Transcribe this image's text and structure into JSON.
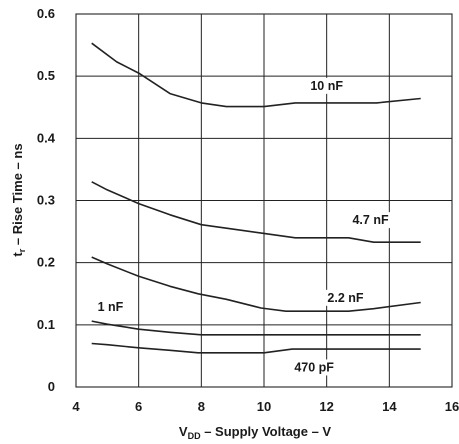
{
  "chart_data": {
    "type": "line",
    "xlabel": {
      "main": "V",
      "sub": "DD",
      "rest": " – Supply Voltage – V"
    },
    "ylabel": {
      "main": "t",
      "sub": "r",
      "rest": " – Rise Time – ns"
    },
    "xlim": [
      4,
      16
    ],
    "ylim": [
      0,
      0.6
    ],
    "xticks": [
      4,
      6,
      8,
      10,
      12,
      14,
      16
    ],
    "xtick_labels": [
      "4",
      "6",
      "8",
      "10",
      "12",
      "14",
      "16"
    ],
    "yticks": [
      0,
      0.1,
      0.2,
      0.3,
      0.4,
      0.5,
      0.6
    ],
    "ytick_labels": [
      "0",
      "0.1",
      "0.2",
      "0.3",
      "0.4",
      "0.5",
      "0.6"
    ],
    "grid": true,
    "colors": {
      "line": "#222222",
      "grid": "#222222",
      "background": "#ffffff"
    },
    "series": [
      {
        "name": "10 nF",
        "x": [
          4.5,
          5.3,
          6,
          7,
          8,
          8.8,
          9.5,
          10,
          11,
          12,
          13,
          13.6,
          15
        ],
        "y": [
          0.553,
          0.523,
          0.505,
          0.472,
          0.457,
          0.451,
          0.451,
          0.451,
          0.457,
          0.457,
          0.457,
          0.457,
          0.464
        ]
      },
      {
        "name": "4.7 nF",
        "x": [
          4.5,
          5,
          6,
          7,
          8,
          9,
          10,
          11,
          12,
          12.7,
          13.5,
          15
        ],
        "y": [
          0.33,
          0.317,
          0.295,
          0.277,
          0.261,
          0.254,
          0.247,
          0.24,
          0.24,
          0.24,
          0.233,
          0.233
        ]
      },
      {
        "name": "2.2 nF",
        "x": [
          4.5,
          5,
          6,
          7,
          7.9,
          8.8,
          9.9,
          10.7,
          12,
          12.7,
          13.5,
          15
        ],
        "y": [
          0.209,
          0.198,
          0.178,
          0.162,
          0.15,
          0.141,
          0.127,
          0.122,
          0.122,
          0.122,
          0.126,
          0.136
        ]
      },
      {
        "name": "1 nF",
        "x": [
          4.5,
          5,
          6,
          7,
          8,
          9,
          10,
          11,
          12,
          13,
          14,
          15
        ],
        "y": [
          0.106,
          0.101,
          0.093,
          0.088,
          0.084,
          0.084,
          0.084,
          0.084,
          0.084,
          0.084,
          0.084,
          0.084
        ]
      },
      {
        "name": "470 pF",
        "x": [
          4.5,
          5,
          6,
          7,
          7.9,
          9,
          10,
          10.9,
          12,
          13,
          14,
          15
        ],
        "y": [
          0.07,
          0.068,
          0.063,
          0.059,
          0.055,
          0.055,
          0.055,
          0.061,
          0.061,
          0.061,
          0.061,
          0.061
        ]
      }
    ]
  }
}
